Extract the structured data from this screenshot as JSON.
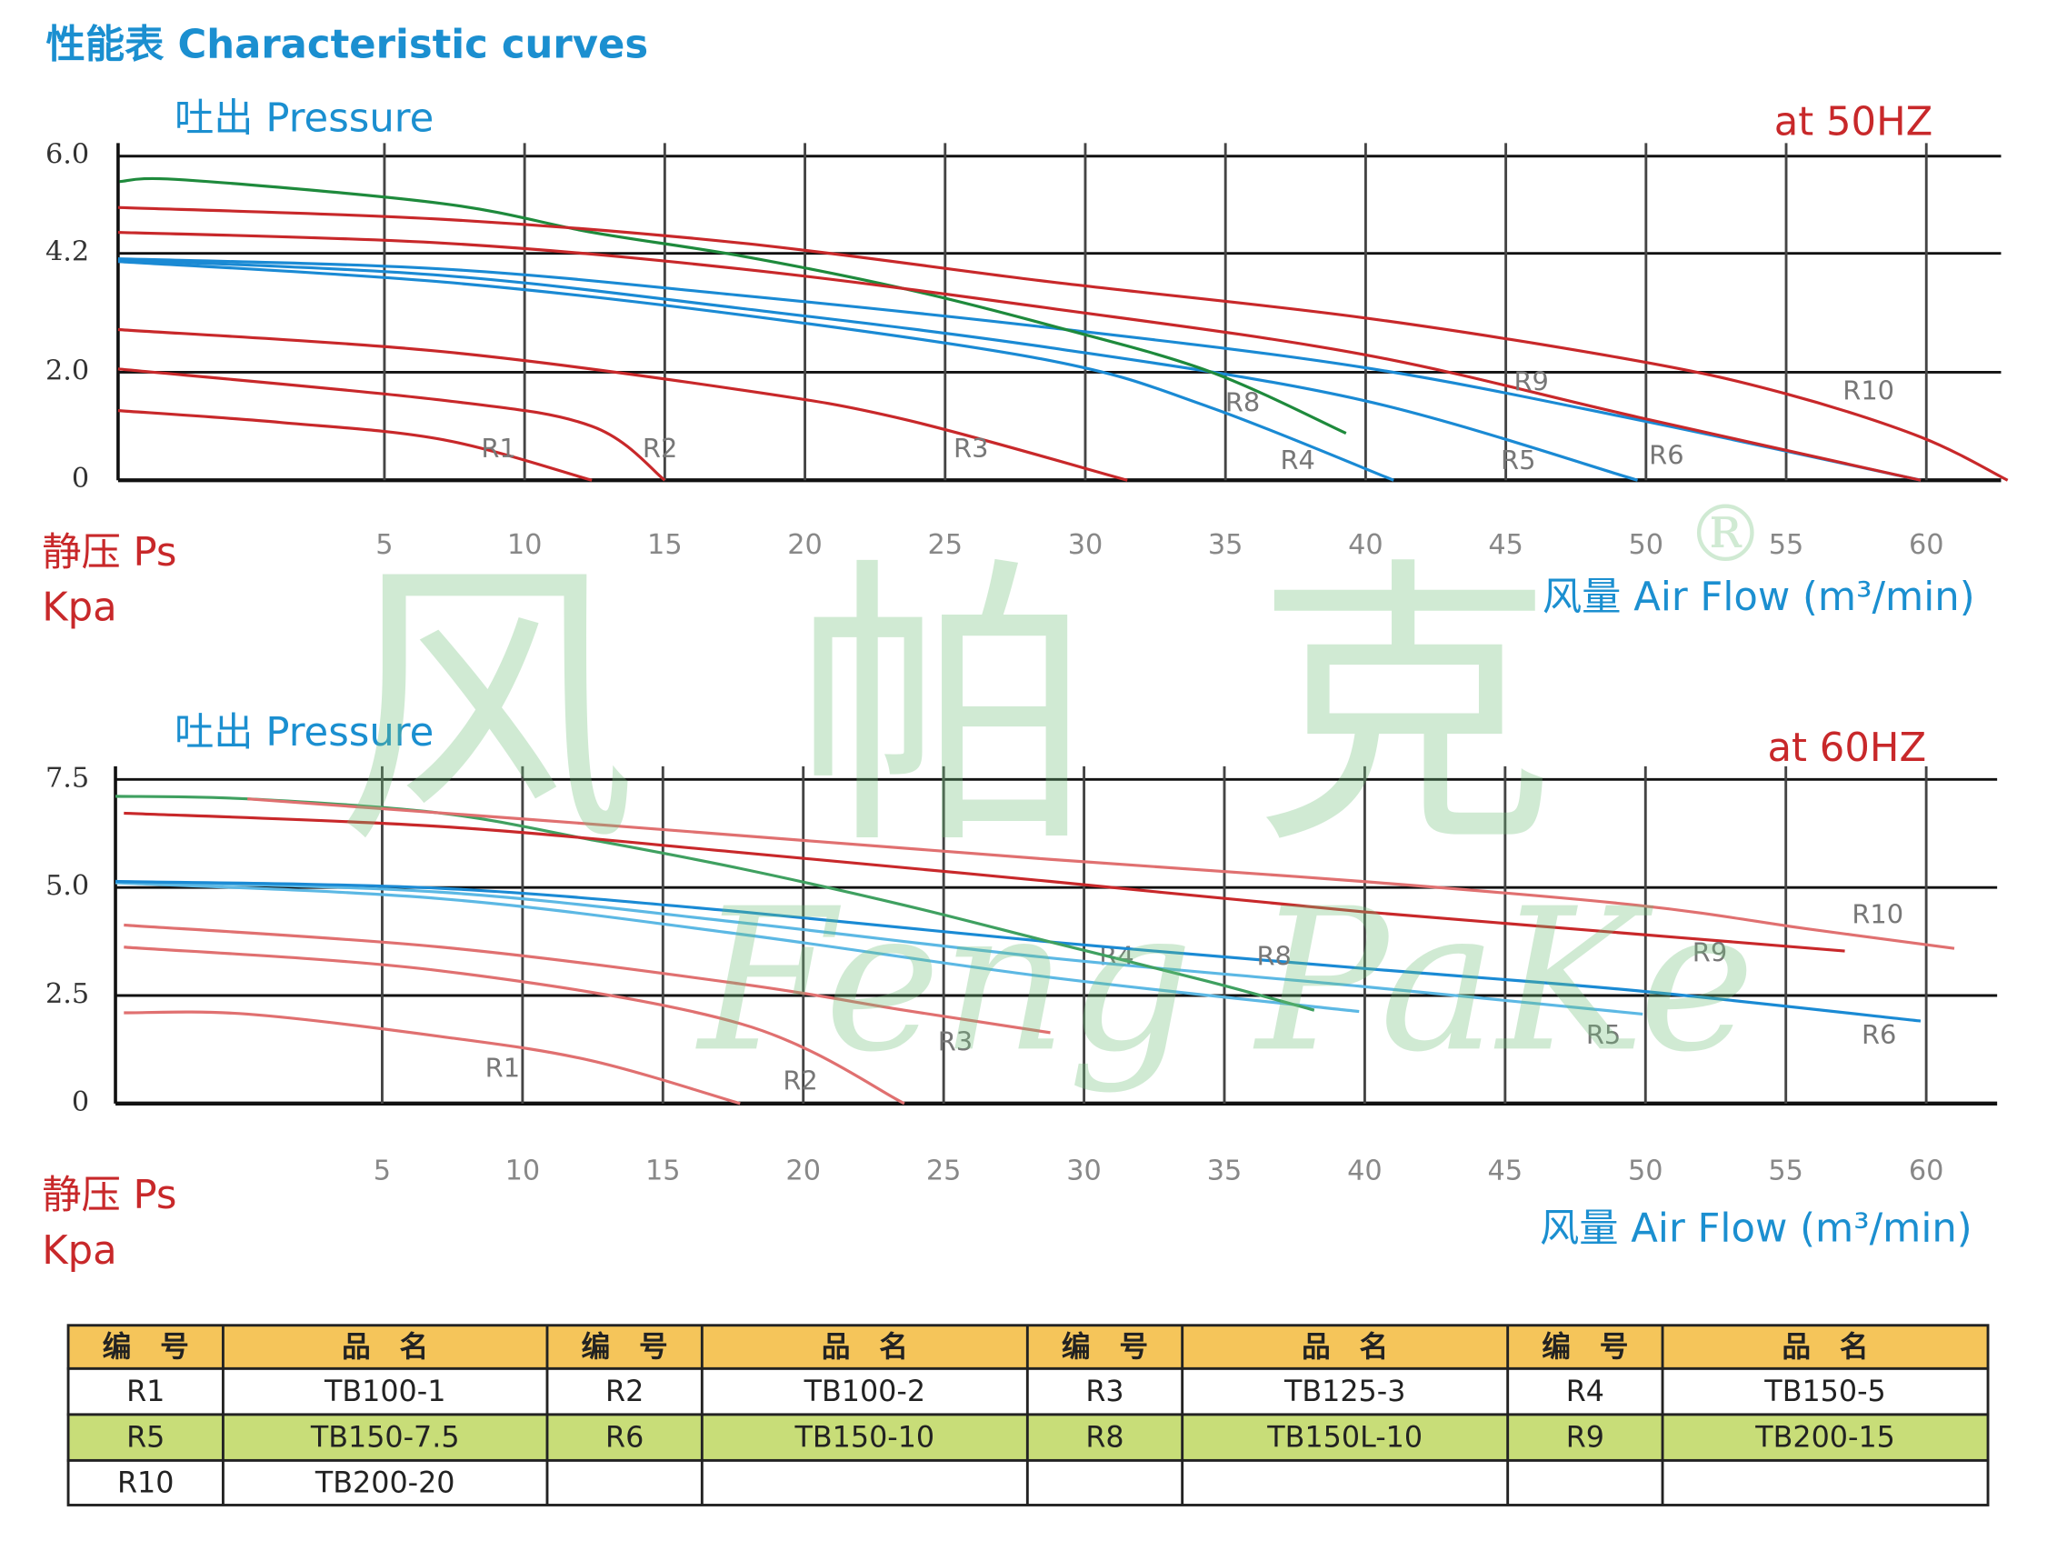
{
  "title": "性能表  Characteristic curves",
  "watermark": {
    "brand_cn": "风帕克",
    "brand_en": "Feng PaKe",
    "mark": "®"
  },
  "chart_data": [
    {
      "type": "line",
      "subtitle": "at  50HZ",
      "ylabel": "吐出 Pressure",
      "ylabel2": "静压 Ps",
      "yunit": "Kpa",
      "xlabel": "风量  Air Flow (m³/min)",
      "xlim": [
        -4.5,
        62.9
      ],
      "xticks": [
        5,
        10,
        15,
        20,
        25,
        30,
        35,
        40,
        45,
        50,
        55,
        60
      ],
      "ylim": [
        0,
        6
      ],
      "yticks": [
        0,
        {
          "value": 2,
          "label": "2.0"
        },
        4.2,
        {
          "value": 6,
          "label": "6.0"
        }
      ],
      "grid": true,
      "series": [
        {
          "name": "R1",
          "color": "#c8282a",
          "x": [
            -4.5,
            1.3,
            7.1,
            12.4
          ],
          "values": [
            1.29,
            1.07,
            0.75,
            0
          ]
        },
        {
          "name": "R2",
          "color": "#c8282a",
          "x": [
            -4.5,
            7.1,
            12.4,
            15.0
          ],
          "values": [
            2.06,
            1.48,
            1.0,
            0
          ]
        },
        {
          "name": "R3",
          "color": "#c8282a",
          "x": [
            -4.5,
            7.1,
            17.75,
            23.6,
            31.5
          ],
          "values": [
            2.79,
            2.38,
            1.67,
            1.12,
            0
          ]
        },
        {
          "name": "R4",
          "color": "#1a8ad4",
          "x": [
            -4.5,
            7.1,
            17.75,
            28.8,
            34.4,
            41.0
          ],
          "values": [
            4.05,
            3.67,
            3.06,
            2.21,
            1.36,
            0
          ]
        },
        {
          "name": "R5",
          "color": "#1a8ad4",
          "x": [
            -4.5,
            7.1,
            17.75,
            28.8,
            39.9,
            49.7
          ],
          "values": [
            4.08,
            3.79,
            3.18,
            2.45,
            1.48,
            0
          ]
        },
        {
          "name": "R6",
          "color": "#1a8ad4",
          "x": [
            -4.5,
            7.1,
            17.75,
            28.8,
            39.9,
            49.7,
            59.8
          ],
          "values": [
            4.1,
            3.91,
            3.42,
            2.82,
            2.09,
            1.12,
            0
          ]
        },
        {
          "name": "R8",
          "color": "#1e8a3c",
          "x": [
            -4.45,
            -2.1,
            7.1,
            12.4,
            17.75,
            23.6,
            28.8,
            34.4,
            39.3
          ],
          "values": [
            5.53,
            5.56,
            5.12,
            4.59,
            4.15,
            3.54,
            2.86,
            2.02,
            0.87
          ]
        },
        {
          "name": "R9",
          "color": "#c8282a",
          "x": [
            -4.5,
            7.1,
            17.75,
            28.8,
            39.9,
            49.7,
            59.8
          ],
          "values": [
            4.59,
            4.39,
            3.91,
            3.18,
            2.33,
            1.17,
            0
          ]
        },
        {
          "name": "R10",
          "color": "#c8282a",
          "x": [
            -4.5,
            7.1,
            17.75,
            28.8,
            39.9,
            49.7,
            55.0,
            59.8,
            62.9
          ],
          "values": [
            5.05,
            4.83,
            4.39,
            3.67,
            3.01,
            2.21,
            1.6,
            0.8,
            0
          ]
        }
      ]
    },
    {
      "type": "line",
      "subtitle": "at  60HZ",
      "ylabel": "吐出 Pressure",
      "ylabel2": "静压 Ps",
      "yunit": "Kpa",
      "xlabel": "风量  Air Flow (m³/min)",
      "xlim": [
        -4.5,
        62.9
      ],
      "xticks": [
        5,
        10,
        15,
        20,
        25,
        30,
        35,
        40,
        45,
        50,
        55,
        60
      ],
      "ylim": [
        0,
        7.5
      ],
      "yticks": [
        0,
        2.5,
        {
          "value": 5,
          "label": "5.0"
        },
        7.5
      ],
      "grid": true,
      "series": [
        {
          "name": "R1",
          "color": "#e07070",
          "x": [
            -4.2,
            0.2,
            7.1,
            12.4,
            17.75
          ],
          "values": [
            2.1,
            2.07,
            1.55,
            1.0,
            0
          ]
        },
        {
          "name": "R2",
          "color": "#e07070",
          "x": [
            -4.2,
            7.1,
            17.75,
            23.6
          ],
          "values": [
            3.62,
            3.07,
            1.85,
            0
          ]
        },
        {
          "name": "R3",
          "color": "#e07070",
          "x": [
            -4.2,
            7.1,
            17.75,
            23.6,
            28.8
          ],
          "values": [
            4.13,
            3.62,
            2.77,
            2.16,
            1.64
          ]
        },
        {
          "name": "R4",
          "color": "#5cb8e4",
          "x": [
            -4.5,
            7.1,
            17.75,
            28.8,
            39.8
          ],
          "values": [
            5.11,
            4.74,
            3.92,
            2.92,
            2.13
          ]
        },
        {
          "name": "R5",
          "color": "#5cb8e4",
          "x": [
            -4.5,
            7.1,
            17.75,
            28.8,
            39.9,
            49.9
          ],
          "values": [
            5.14,
            4.89,
            4.19,
            3.37,
            2.71,
            2.07
          ]
        },
        {
          "name": "R6",
          "color": "#1a8ad4",
          "x": [
            -4.5,
            7.1,
            17.75,
            28.8,
            39.9,
            49.7,
            59.8
          ],
          "values": [
            5.14,
            4.98,
            4.44,
            3.74,
            3.13,
            2.61,
            1.91
          ]
        },
        {
          "name": "R8",
          "color": "#3fa060",
          "x": [
            -4.5,
            0.2,
            7.1,
            12.4,
            17.75,
            23.6,
            28.8,
            34.4,
            38.2
          ],
          "values": [
            7.11,
            7.05,
            6.72,
            6.11,
            5.44,
            4.59,
            3.74,
            2.83,
            2.16
          ]
        },
        {
          "name": "R9",
          "color": "#c8282a",
          "x": [
            -4.2,
            7.1,
            17.75,
            28.8,
            39.9,
            49.7,
            57.1
          ],
          "values": [
            6.72,
            6.41,
            5.81,
            5.14,
            4.44,
            3.92,
            3.53
          ]
        },
        {
          "name": "R10",
          "color": "#e07070",
          "x": [
            0.2,
            12.4,
            28.8,
            39.9,
            49.7,
            55.8,
            61.0
          ],
          "values": [
            7.05,
            6.47,
            5.65,
            5.14,
            4.59,
            4.04,
            3.59
          ]
        }
      ]
    }
  ],
  "table": {
    "header": [
      "编　号",
      "品　名",
      "编　号",
      "品　名",
      "编　号",
      "品　名",
      "编　号",
      "品　名"
    ],
    "rows": [
      [
        "R1",
        "TB100-1",
        "R2",
        "TB100-2",
        "R3",
        "TB125-3",
        "R4",
        "TB150-5"
      ],
      [
        "R5",
        "TB150-7.5",
        "R6",
        "TB150-10",
        "R8",
        "TB150L-10",
        "R9",
        "TB200-15"
      ],
      [
        "R10",
        "TB200-20"
      ]
    ]
  }
}
